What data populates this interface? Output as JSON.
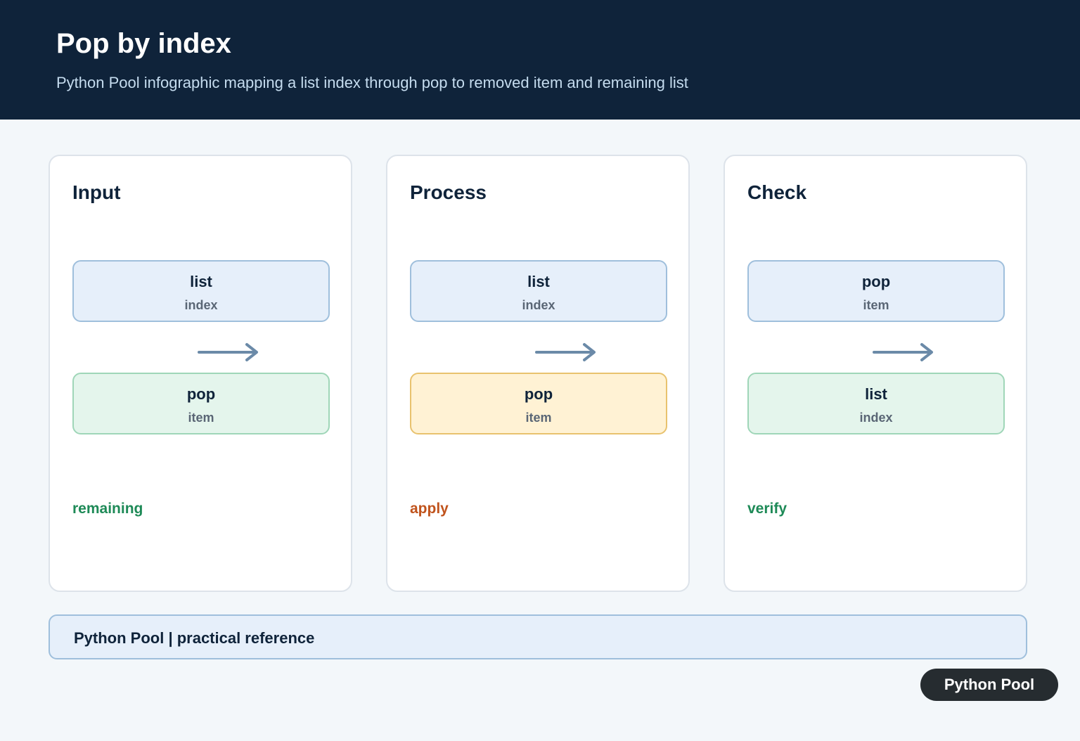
{
  "header": {
    "title": "Pop by index",
    "subtitle": "Python Pool infographic mapping a list index through pop to removed item and remaining list"
  },
  "cards": [
    {
      "title": "Input",
      "top": {
        "label": "list",
        "sub": "index"
      },
      "bottom": {
        "label": "pop",
        "sub": "item"
      },
      "note": "remaining"
    },
    {
      "title": "Process",
      "top": {
        "label": "list",
        "sub": "index"
      },
      "bottom": {
        "label": "pop",
        "sub": "item"
      },
      "note": "apply"
    },
    {
      "title": "Check",
      "top": {
        "label": "pop",
        "sub": "item"
      },
      "bottom": {
        "label": "list",
        "sub": "index"
      },
      "note": "verify"
    }
  ],
  "footer": "Python Pool | practical reference",
  "badge": "Python Pool"
}
